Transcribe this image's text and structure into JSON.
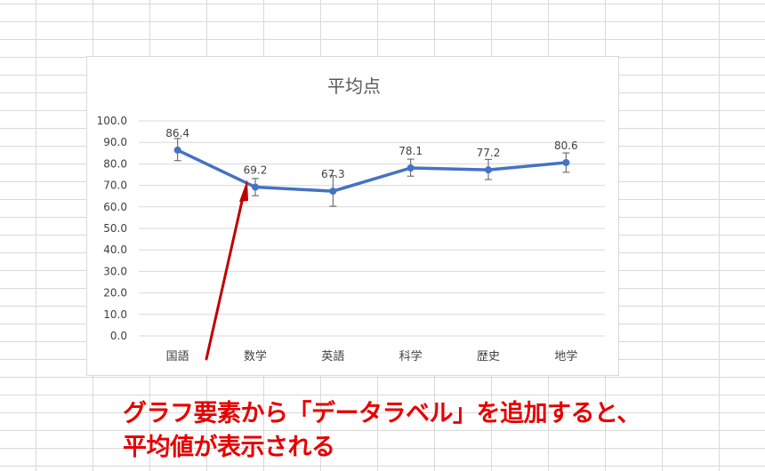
{
  "chart_data": {
    "type": "line",
    "title": "平均点",
    "categories": [
      "国語",
      "数学",
      "英語",
      "科学",
      "歴史",
      "地学"
    ],
    "values": [
      86.4,
      69.2,
      67.3,
      78.1,
      77.2,
      80.6
    ],
    "error_bars": {
      "upper": [
        91.8,
        73.2,
        74.5,
        82.2,
        82.1,
        85.1
      ],
      "lower": [
        81.5,
        65.2,
        60.3,
        74.3,
        72.7,
        76.1
      ]
    },
    "data_labels": [
      "86.4",
      "69.2",
      "67.3",
      "78.1",
      "77.2",
      "80.6"
    ],
    "ylim": [
      0,
      100
    ],
    "yticks": [
      0,
      10,
      20,
      30,
      40,
      50,
      60,
      70,
      80,
      90,
      100
    ],
    "ytick_labels": [
      "0.0",
      "10.0",
      "20.0",
      "30.0",
      "40.0",
      "50.0",
      "60.0",
      "70.0",
      "80.0",
      "90.0",
      "100.0"
    ],
    "grid": true,
    "xlabel": "",
    "ylabel": ""
  },
  "annotation": {
    "line1": "グラフ要素から「データラベル」を追加すると、",
    "line2": "平均値が表示される"
  },
  "colors": {
    "series": "#4472c4",
    "arrow": "#c00000",
    "caption": "#e60000",
    "text": "#404040",
    "grid": "#d9d9d9"
  }
}
